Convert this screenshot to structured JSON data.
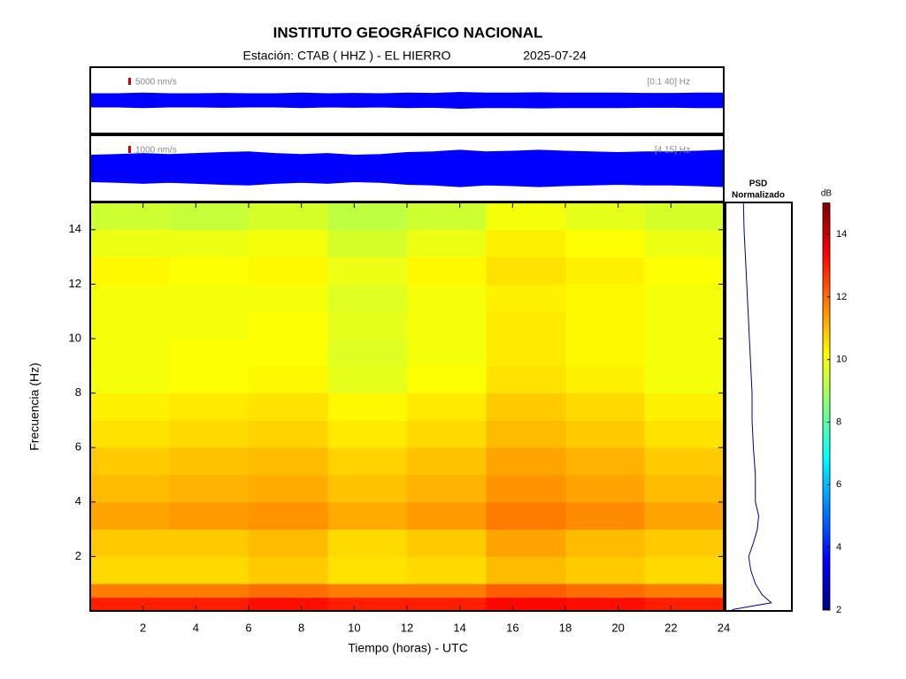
{
  "title": "INSTITUTO GEOGRÁFICO NACIONAL",
  "subtitle": "Estación:  CTAB ( HHZ ) - EL HIERRO",
  "date": "2025-07-24",
  "chart_data": {
    "type": "spectrogram",
    "xlabel": "Tiempo (horas) - UTC",
    "ylabel": "Frecuencia  (Hz)",
    "xlim": [
      0,
      24
    ],
    "xticks": [
      2,
      4,
      6,
      8,
      10,
      12,
      14,
      16,
      18,
      20,
      22,
      24
    ],
    "ylim": [
      0,
      15
    ],
    "yticks": [
      2,
      4,
      6,
      8,
      10,
      12,
      14
    ],
    "time_edges": [
      0,
      3,
      6,
      9,
      12,
      15,
      18,
      21,
      24
    ],
    "freq_edges": [
      0,
      0.5,
      1,
      2,
      3,
      4,
      5,
      6,
      7,
      8,
      9,
      10,
      11,
      12,
      13,
      14,
      15
    ],
    "values": [
      [
        13,
        13,
        13.2,
        13,
        13,
        13.3,
        13.2,
        13
      ],
      [
        11.8,
        11.8,
        12,
        11.8,
        11.8,
        12.2,
        12,
        11.8
      ],
      [
        10.6,
        10.6,
        10.8,
        10.5,
        10.6,
        11,
        10.8,
        10.6
      ],
      [
        10.8,
        10.8,
        11,
        10.6,
        10.8,
        11.3,
        11,
        10.8
      ],
      [
        11.3,
        11.4,
        11.5,
        11.2,
        11.4,
        11.8,
        11.6,
        11.3
      ],
      [
        11,
        11.1,
        11.2,
        10.9,
        11.1,
        11.5,
        11.3,
        11
      ],
      [
        10.8,
        10.9,
        11,
        10.7,
        10.9,
        11.3,
        11.1,
        10.8
      ],
      [
        10.5,
        10.6,
        10.7,
        10.4,
        10.6,
        11,
        10.8,
        10.5
      ],
      [
        10.3,
        10.4,
        10.5,
        10.2,
        10.4,
        10.8,
        10.6,
        10.3
      ],
      [
        10,
        10.1,
        10.2,
        9.8,
        10.1,
        10.5,
        10.3,
        10
      ],
      [
        10,
        10.1,
        10.1,
        9.7,
        10,
        10.4,
        10.2,
        10
      ],
      [
        10,
        10,
        10.1,
        9.8,
        10,
        10.4,
        10.2,
        10
      ],
      [
        10,
        10,
        10,
        9.7,
        10,
        10.3,
        10.2,
        10
      ],
      [
        10.2,
        10.1,
        10.2,
        9.9,
        10.2,
        10.5,
        10.3,
        10.1
      ],
      [
        9.9,
        9.9,
        10,
        9.6,
        9.9,
        10.3,
        10.1,
        9.9
      ],
      [
        9.5,
        9.4,
        9.6,
        9.3,
        9.5,
        10,
        9.8,
        9.6
      ]
    ],
    "colorbar": {
      "label": "dB",
      "clim": [
        2,
        15
      ],
      "ticks": [
        2,
        4,
        6,
        8,
        10,
        12,
        14
      ],
      "colormap": [
        "#000080",
        "#0000ff",
        "#0080ff",
        "#00ffff",
        "#80ff80",
        "#ffff00",
        "#ff8000",
        "#ff0000",
        "#800000"
      ]
    },
    "psd": {
      "title": [
        "PSD",
        "Normalizado"
      ],
      "color": "#00008b",
      "freqs": [
        0.05,
        0.3,
        0.6,
        1,
        1.5,
        2,
        2.5,
        3,
        3.5,
        4,
        5,
        6,
        7,
        8,
        9,
        10,
        11,
        12,
        13,
        14,
        15
      ],
      "values": [
        0.1,
        0.69,
        0.55,
        0.45,
        0.38,
        0.35,
        0.42,
        0.48,
        0.5,
        0.45,
        0.45,
        0.42,
        0.4,
        0.4,
        0.38,
        0.36,
        0.34,
        0.32,
        0.3,
        0.28,
        0.27
      ]
    },
    "traces": [
      {
        "scale": "5000 nm/s",
        "band": "[0.1 40] Hz",
        "color": "#0000ff",
        "hours": [
          0,
          1,
          2,
          3,
          4,
          5,
          6,
          7,
          8,
          9,
          10,
          11,
          12,
          13,
          14,
          15,
          16,
          17,
          18,
          19,
          20,
          21,
          22,
          23,
          24
        ],
        "amplitude": [
          0.2,
          0.2,
          0.22,
          0.2,
          0.2,
          0.21,
          0.2,
          0.2,
          0.22,
          0.2,
          0.21,
          0.2,
          0.22,
          0.21,
          0.24,
          0.22,
          0.22,
          0.23,
          0.22,
          0.22,
          0.22,
          0.21,
          0.21,
          0.22,
          0.22
        ]
      },
      {
        "scale": "1000 nm/s",
        "band": "[4 15] Hz",
        "color": "#0000ff",
        "hours": [
          0,
          1,
          2,
          3,
          4,
          5,
          6,
          7,
          8,
          9,
          10,
          11,
          12,
          13,
          14,
          15,
          16,
          17,
          18,
          19,
          20,
          21,
          22,
          23,
          24
        ],
        "amplitude": [
          0.4,
          0.42,
          0.45,
          0.42,
          0.45,
          0.48,
          0.5,
          0.45,
          0.42,
          0.45,
          0.4,
          0.42,
          0.48,
          0.5,
          0.55,
          0.5,
          0.52,
          0.55,
          0.52,
          0.5,
          0.48,
          0.5,
          0.5,
          0.52,
          0.55
        ]
      }
    ]
  }
}
